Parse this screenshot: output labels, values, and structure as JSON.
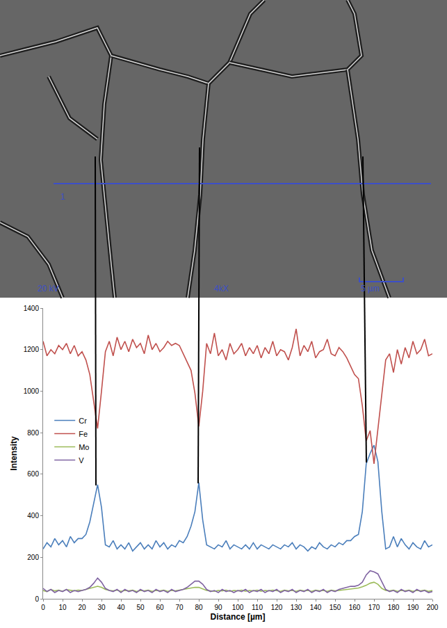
{
  "chart_data": {
    "type": "line",
    "x_label": "Distance [µm]",
    "y_label": "Intensity",
    "x": [
      0,
      2,
      4,
      6,
      8,
      10,
      12,
      14,
      16,
      18,
      20,
      22,
      24,
      26,
      28,
      30,
      32,
      34,
      36,
      38,
      40,
      42,
      44,
      46,
      48,
      50,
      52,
      54,
      56,
      58,
      60,
      62,
      64,
      66,
      68,
      70,
      72,
      74,
      76,
      78,
      80,
      82,
      84,
      86,
      88,
      90,
      92,
      94,
      96,
      98,
      100,
      102,
      104,
      106,
      108,
      110,
      112,
      114,
      116,
      118,
      120,
      122,
      124,
      126,
      128,
      130,
      132,
      134,
      136,
      138,
      140,
      142,
      144,
      146,
      148,
      150,
      152,
      154,
      156,
      158,
      160,
      162,
      164,
      166,
      168,
      170,
      172,
      174,
      176,
      178,
      180,
      182,
      184,
      186,
      188,
      190,
      192,
      194,
      196,
      198,
      200
    ],
    "series": [
      {
        "name": "Cr",
        "color": "#4a7ebb",
        "values": [
          240,
          270,
          250,
          290,
          260,
          280,
          250,
          300,
          270,
          290,
          290,
          310,
          370,
          460,
          550,
          440,
          260,
          250,
          280,
          240,
          260,
          240,
          270,
          230,
          250,
          270,
          240,
          260,
          240,
          280,
          250,
          270,
          240,
          260,
          250,
          280,
          270,
          300,
          350,
          420,
          560,
          380,
          260,
          250,
          240,
          260,
          250,
          280,
          240,
          260,
          250,
          240,
          260,
          240,
          270,
          240,
          260,
          250,
          240,
          260,
          250,
          240,
          260,
          250,
          270,
          240,
          260,
          250,
          230,
          250,
          240,
          270,
          250,
          240,
          260,
          250,
          270,
          260,
          280,
          280,
          300,
          310,
          420,
          650,
          700,
          740,
          660,
          420,
          240,
          250,
          300,
          250,
          290,
          260,
          240,
          270,
          250,
          240,
          280,
          250,
          260
        ]
      },
      {
        "name": "Fe",
        "color": "#c0504d",
        "values": [
          1240,
          1170,
          1200,
          1180,
          1220,
          1200,
          1230,
          1180,
          1220,
          1170,
          1190,
          1150,
          1080,
          950,
          820,
          1000,
          1190,
          1240,
          1170,
          1260,
          1200,
          1240,
          1190,
          1250,
          1210,
          1230,
          1180,
          1270,
          1200,
          1230,
          1190,
          1210,
          1240,
          1220,
          1230,
          1220,
          1180,
          1140,
          1100,
          990,
          830,
          1000,
          1230,
          1180,
          1280,
          1170,
          1200,
          1150,
          1230,
          1180,
          1200,
          1230,
          1170,
          1210,
          1180,
          1220,
          1160,
          1210,
          1180,
          1240,
          1170,
          1200,
          1190,
          1150,
          1210,
          1300,
          1170,
          1220,
          1190,
          1240,
          1160,
          1190,
          1200,
          1250,
          1180,
          1170,
          1210,
          1190,
          1160,
          1120,
          1080,
          1060,
          930,
          760,
          810,
          650,
          820,
          1000,
          1150,
          1180,
          1090,
          1200,
          1130,
          1210,
          1160,
          1240,
          1180,
          1200,
          1250,
          1170,
          1180
        ]
      },
      {
        "name": "Mo",
        "color": "#9bbb59",
        "values": [
          40,
          35,
          45,
          38,
          42,
          36,
          44,
          40,
          38,
          42,
          40,
          45,
          50,
          55,
          60,
          55,
          45,
          40,
          38,
          42,
          36,
          40,
          38,
          42,
          35,
          40,
          38,
          42,
          36,
          40,
          38,
          42,
          36,
          40,
          38,
          42,
          45,
          48,
          50,
          55,
          55,
          48,
          40,
          38,
          36,
          40,
          38,
          42,
          36,
          40,
          38,
          42,
          36,
          40,
          38,
          42,
          36,
          40,
          38,
          42,
          40,
          36,
          42,
          38,
          40,
          36,
          42,
          38,
          40,
          36,
          42,
          38,
          40,
          36,
          42,
          38,
          40,
          42,
          45,
          48,
          50,
          52,
          58,
          65,
          75,
          80,
          70,
          50,
          40,
          38,
          42,
          36,
          40,
          38,
          42,
          36,
          40,
          38,
          42,
          36,
          40
        ]
      },
      {
        "name": "V",
        "color": "#8064a2",
        "values": [
          50,
          35,
          45,
          30,
          40,
          35,
          45,
          30,
          40,
          35,
          40,
          45,
          55,
          75,
          100,
          80,
          50,
          40,
          35,
          45,
          30,
          45,
          35,
          40,
          30,
          45,
          35,
          40,
          30,
          45,
          35,
          40,
          30,
          45,
          35,
          40,
          45,
          55,
          70,
          85,
          85,
          70,
          45,
          35,
          40,
          30,
          45,
          35,
          40,
          30,
          40,
          35,
          45,
          30,
          40,
          35,
          45,
          30,
          40,
          35,
          45,
          30,
          40,
          35,
          45,
          30,
          40,
          35,
          45,
          30,
          40,
          35,
          45,
          30,
          40,
          35,
          45,
          50,
          55,
          60,
          60,
          65,
          80,
          115,
          135,
          130,
          120,
          80,
          45,
          35,
          40,
          30,
          45,
          35,
          40,
          30,
          45,
          35,
          40,
          30,
          35
        ]
      }
    ],
    "xlim": [
      0,
      200
    ],
    "xticks": [
      0,
      10,
      20,
      30,
      40,
      50,
      60,
      70,
      80,
      90,
      100,
      110,
      120,
      130,
      140,
      150,
      160,
      170,
      180,
      190,
      200
    ],
    "ylim": [
      0,
      1400
    ],
    "yticks": [
      0,
      200,
      400,
      600,
      800,
      1000,
      1200,
      1400
    ],
    "grid": false,
    "legend": "left"
  },
  "micrograph": {
    "line_label": "1",
    "voltage": "20 kV",
    "magnification": "4kX",
    "scale_bar": "5 µm"
  }
}
